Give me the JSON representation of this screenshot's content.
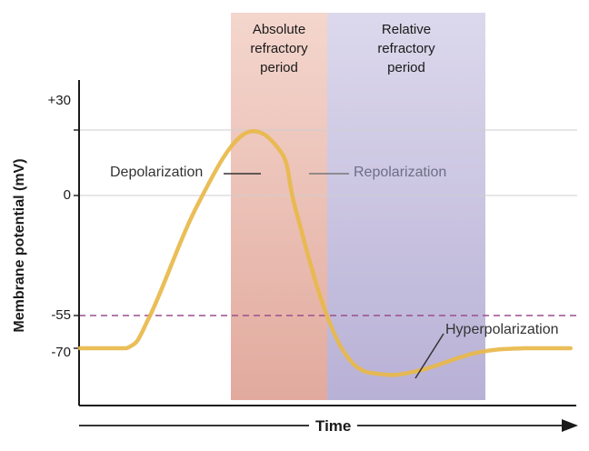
{
  "chart_data": {
    "type": "line",
    "title": "",
    "xlabel": "Time",
    "ylabel": "Membrane potential (mV)",
    "y_ticks": [
      {
        "label": "+30",
        "value": 30
      },
      {
        "label": "0",
        "value": 0
      },
      {
        "label": "-55",
        "value": -55
      },
      {
        "label": "-70",
        "value": -70
      }
    ],
    "threshold": -55,
    "regions": [
      {
        "name": "absolute",
        "lines": [
          "Absolute",
          "refractory",
          "period"
        ],
        "color": "#e8b4a8"
      },
      {
        "name": "relative",
        "lines": [
          "Relative",
          "refractory",
          "period"
        ],
        "color": "#c6c0de"
      }
    ],
    "annotations": {
      "depolarization": "Depolarization",
      "repolarization": "Repolarization",
      "hyperpolarization": "Hyperpolarization"
    },
    "series": [
      {
        "values_x": [
          0,
          1,
          1.5,
          2.5,
          3.5,
          4.3,
          4.6,
          5.2,
          5.8,
          6.5,
          7.3,
          8.5,
          9.5,
          10.5
        ],
        "values_y": [
          -70,
          -70,
          -55,
          -5,
          28,
          20,
          -5,
          -50,
          -76,
          -82,
          -80,
          -72,
          -70,
          -70
        ]
      }
    ],
    "colors": {
      "trace": "#e8b94a",
      "threshold": "#9b4f8e",
      "gridline": "#cfcfcf",
      "axis": "#1a1a1a",
      "repolarization_text": "#6e6e86"
    }
  }
}
